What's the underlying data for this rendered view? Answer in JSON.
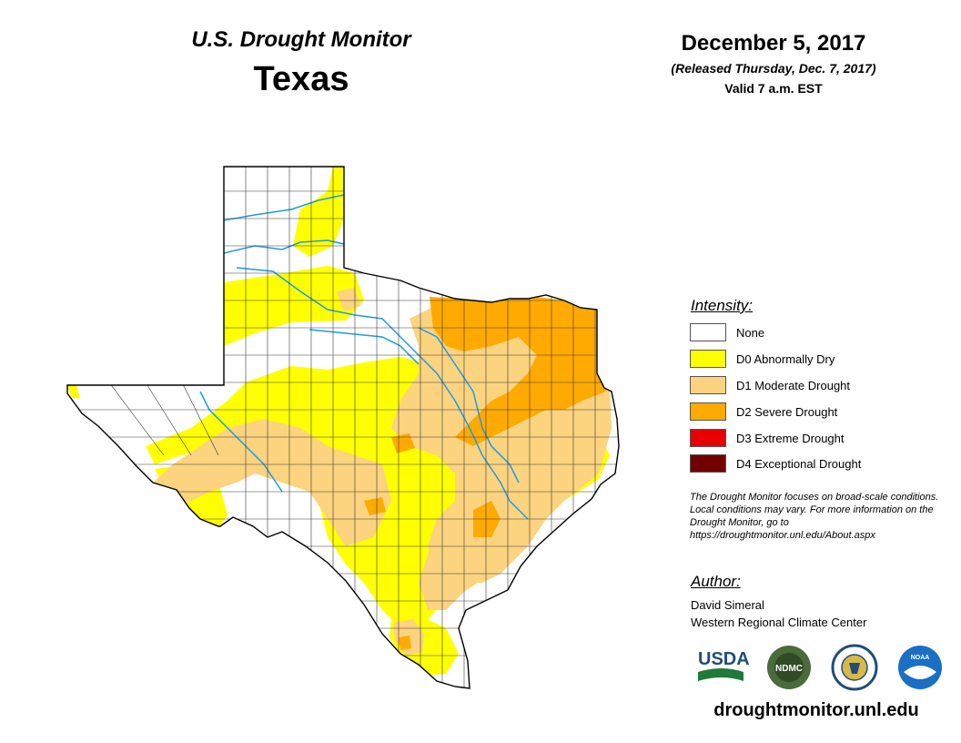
{
  "header": {
    "monitor_title": "U.S. Drought Monitor",
    "state": "Texas",
    "date": "December 5, 2017",
    "release_note": "(Released Thursday, Dec. 7, 2017)",
    "valid_note": "Valid 7 a.m. EST"
  },
  "legend": {
    "heading": "Intensity:",
    "items": [
      {
        "code": "None",
        "label": "None",
        "color": "#ffffff"
      },
      {
        "code": "D0",
        "label": "D0 Abnormally Dry",
        "color": "#ffff00"
      },
      {
        "code": "D1",
        "label": "D1 Moderate Drought",
        "color": "#fcd37f"
      },
      {
        "code": "D2",
        "label": "D2 Severe Drought",
        "color": "#ffaa00"
      },
      {
        "code": "D3",
        "label": "D3 Extreme Drought",
        "color": "#e60000"
      },
      {
        "code": "D4",
        "label": "D4 Exceptional Drought",
        "color": "#730000"
      }
    ]
  },
  "note": "The Drought Monitor focuses on broad-scale conditions. Local conditions may vary. For more information on the Drought Monitor, go to https://droughtmonitor.unl.edu/About.aspx",
  "author": {
    "heading": "Author:",
    "name": "David Simeral",
    "organization": "Western Regional Climate Center"
  },
  "logos": {
    "usda": "USDA",
    "ndmc": "NDMC",
    "noaa": "NOAA"
  },
  "website": "droughtmonitor.unl.edu",
  "colors": {
    "river": "#1e9be6",
    "county_line": "#3a3a3a",
    "state_outline": "#000000"
  }
}
